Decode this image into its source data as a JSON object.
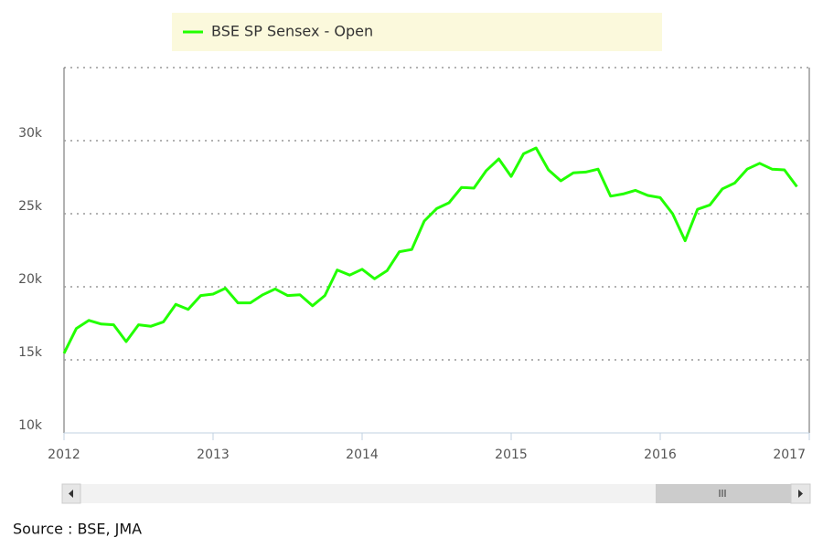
{
  "chart_data": {
    "type": "line",
    "series": [
      {
        "name": "BSE SP Sensex - Open",
        "color": "#22ff00",
        "values": [
          15450,
          17150,
          17700,
          17450,
          17400,
          16250,
          17400,
          17300,
          17600,
          18800,
          18450,
          19400,
          19500,
          19900,
          18900,
          18900,
          19450,
          19850,
          19400,
          19450,
          18700,
          19400,
          21150,
          20800,
          21200,
          20550,
          21100,
          22400,
          22550,
          24500,
          25350,
          25750,
          26800,
          26750,
          27950,
          28750,
          27550,
          29100,
          29500,
          28000,
          27250,
          27800,
          27850,
          28050,
          26200,
          26350,
          26600,
          26250,
          26100,
          25000,
          23150,
          25300,
          25600,
          26700,
          27100,
          28050,
          28450,
          28050,
          28000,
          26850
        ]
      }
    ],
    "x": [
      2012,
      2012.083,
      2012.167,
      2012.25,
      2012.333,
      2012.417,
      2012.5,
      2012.583,
      2012.667,
      2012.75,
      2012.833,
      2012.917,
      2013,
      2013.083,
      2013.167,
      2013.25,
      2013.333,
      2013.417,
      2013.5,
      2013.583,
      2013.667,
      2013.75,
      2013.833,
      2013.917,
      2014,
      2014.083,
      2014.167,
      2014.25,
      2014.333,
      2014.417,
      2014.5,
      2014.583,
      2014.667,
      2014.75,
      2014.833,
      2014.917,
      2015,
      2015.083,
      2015.167,
      2015.25,
      2015.333,
      2015.417,
      2015.5,
      2015.583,
      2015.667,
      2015.75,
      2015.833,
      2015.917,
      2016,
      2016.083,
      2016.167,
      2016.25,
      2016.333,
      2016.417,
      2016.5,
      2016.583,
      2016.667,
      2016.75,
      2016.833,
      2016.917
    ],
    "xlim": [
      2012,
      2017
    ],
    "xticks": [
      2012,
      2013,
      2014,
      2015,
      2016,
      2017
    ],
    "ylim": [
      10000,
      35000
    ],
    "yticks": [
      {
        "value": 10000,
        "label": "10k"
      },
      {
        "value": 15000,
        "label": "15k"
      },
      {
        "value": 20000,
        "label": "20k"
      },
      {
        "value": 25000,
        "label": "25k"
      },
      {
        "value": 30000,
        "label": "30k"
      }
    ],
    "grid": true
  },
  "source": "Source : BSE, JMA"
}
